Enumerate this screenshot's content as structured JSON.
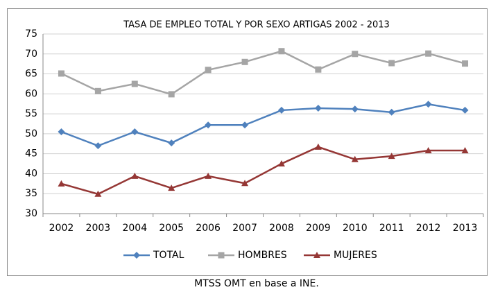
{
  "chart_data": {
    "type": "line",
    "title": "TASA DE EMPLEO TOTAL Y POR SEXO ARTIGAS 2002 - 2013",
    "categories": [
      "2002",
      "2003",
      "2004",
      "2005",
      "2006",
      "2007",
      "2008",
      "2009",
      "2010",
      "2011",
      "2012",
      "2013"
    ],
    "series": [
      {
        "name": "TOTAL",
        "color": "#4f81bd",
        "marker": "diamond",
        "values": [
          50.5,
          47,
          50.5,
          47.7,
          52.2,
          52.2,
          55.9,
          56.4,
          56.2,
          55.4,
          57.4,
          55.9
        ]
      },
      {
        "name": "HOMBRES",
        "color": "#a5a5a5",
        "marker": "square",
        "values": [
          65.1,
          60.7,
          62.5,
          59.9,
          66,
          68,
          70.7,
          66.1,
          70,
          67.7,
          70.1,
          67.6
        ]
      },
      {
        "name": "MUJERES",
        "color": "#953735",
        "marker": "triangle",
        "values": [
          37.5,
          34.9,
          39.4,
          36.4,
          39.4,
          37.6,
          42.5,
          46.7,
          43.6,
          44.4,
          45.8,
          45.8
        ]
      }
    ],
    "ylim": [
      30,
      75
    ],
    "yticks": [
      30,
      35,
      40,
      45,
      50,
      55,
      60,
      65,
      70,
      75
    ],
    "grid": true,
    "legend": "bottom",
    "source": "MTSS OMT en base a INE."
  }
}
